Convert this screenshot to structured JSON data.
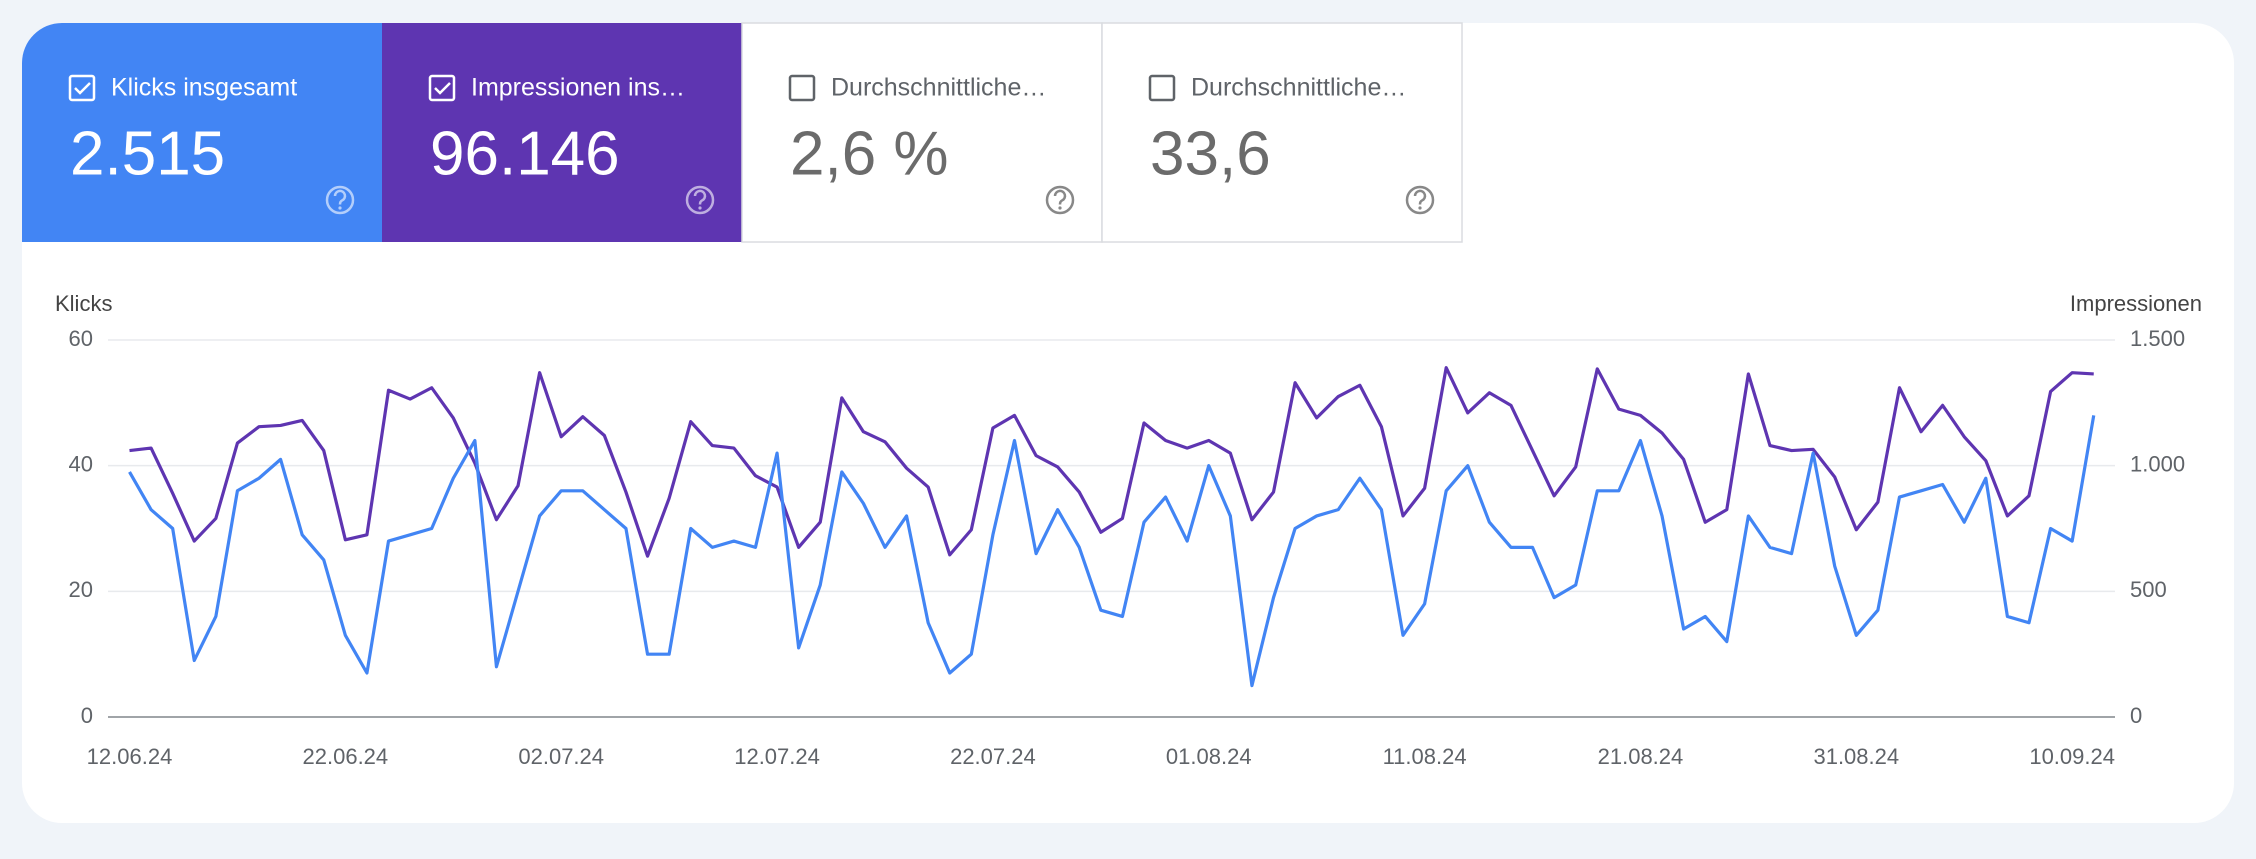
{
  "cards": [
    {
      "label": "Klicks insgesamt",
      "value": "2.515",
      "checked": true,
      "color": "#4285f4"
    },
    {
      "label": "Impressionen ins…",
      "value": "96.146",
      "checked": true,
      "color": "#5e35b1"
    },
    {
      "label": "Durchschnittliche…",
      "value": "2,6 %",
      "checked": false
    },
    {
      "label": "Durchschnittliche…",
      "value": "33,6",
      "checked": false
    }
  ],
  "chart_data": {
    "type": "line",
    "y_label": "Klicks",
    "y2_label": "Impressionen",
    "categories": [
      "12.06.24",
      null,
      null,
      null,
      null,
      null,
      null,
      null,
      null,
      null,
      "22.06.24",
      null,
      null,
      null,
      null,
      null,
      null,
      null,
      null,
      null,
      "02.07.24",
      null,
      null,
      null,
      null,
      null,
      null,
      null,
      null,
      null,
      "12.07.24",
      null,
      null,
      null,
      null,
      null,
      null,
      null,
      null,
      null,
      "22.07.24",
      null,
      null,
      null,
      null,
      null,
      null,
      null,
      null,
      null,
      "01.08.24",
      null,
      null,
      null,
      null,
      null,
      null,
      null,
      null,
      null,
      "11.08.24",
      null,
      null,
      null,
      null,
      null,
      null,
      null,
      null,
      null,
      "21.08.24",
      null,
      null,
      null,
      null,
      null,
      null,
      null,
      null,
      null,
      "31.08.24",
      null,
      null,
      null,
      null,
      null,
      null,
      null,
      null,
      null,
      "10.09.24",
      null
    ],
    "series": [
      {
        "name": "Klicks",
        "color": "#4285f4",
        "axis": "y",
        "values": [
          39,
          33,
          30,
          9,
          16,
          36,
          38,
          41,
          29,
          25,
          13,
          7,
          28,
          29,
          30,
          38,
          44,
          8,
          20,
          32,
          36,
          36,
          33,
          30,
          10,
          10,
          30,
          27,
          28,
          27,
          42,
          11,
          21,
          39,
          34,
          27,
          32,
          15,
          7,
          10,
          29,
          44,
          26,
          33,
          27,
          17,
          16,
          31,
          35,
          28,
          40,
          32,
          5,
          19,
          30,
          32,
          33,
          38,
          33,
          13,
          18,
          36,
          40,
          31,
          27,
          27,
          19,
          21,
          36,
          36,
          44,
          32,
          14,
          16,
          12,
          32,
          27,
          26,
          42,
          24,
          13,
          17,
          35,
          36,
          37,
          31,
          38,
          16,
          15,
          30,
          28,
          48
        ]
      },
      {
        "name": "Impressionen",
        "color": "#5e35b1",
        "axis": "y2",
        "values": [
          1060,
          1070,
          890,
          700,
          790,
          1090,
          1155,
          1160,
          1180,
          1060,
          705,
          725,
          1300,
          1265,
          1310,
          1190,
          1010,
          785,
          920,
          1370,
          1115,
          1195,
          1120,
          895,
          640,
          870,
          1175,
          1080,
          1070,
          960,
          915,
          675,
          775,
          1270,
          1135,
          1095,
          990,
          915,
          645,
          745,
          1150,
          1200,
          1040,
          995,
          895,
          735,
          790,
          1170,
          1100,
          1070,
          1100,
          1050,
          785,
          895,
          1330,
          1190,
          1275,
          1320,
          1155,
          800,
          910,
          1390,
          1210,
          1290,
          1240,
          1060,
          880,
          995,
          1385,
          1225,
          1200,
          1130,
          1025,
          775,
          825,
          1365,
          1080,
          1060,
          1065,
          955,
          745,
          855,
          1310,
          1135,
          1240,
          1115,
          1020,
          800,
          880,
          1295,
          1370,
          1365
        ]
      }
    ],
    "ylim": [
      0,
      60
    ],
    "yticks": [
      0,
      20,
      40,
      60
    ],
    "y2lim": [
      0,
      1500
    ],
    "y2ticks": [
      0,
      500,
      {
        "value": 1000,
        "label": "1.000"
      },
      {
        "value": 1500,
        "label": "1.500"
      }
    ],
    "grid": true
  }
}
